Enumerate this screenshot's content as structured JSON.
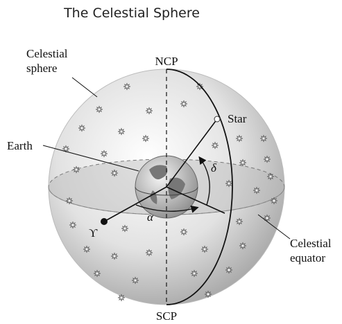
{
  "title": "The Celestial Sphere",
  "labels": {
    "celestial_sphere": [
      "Celestial",
      "sphere"
    ],
    "ncp": "NCP",
    "scp": "SCP",
    "star": "Star",
    "earth": "Earth",
    "delta": "δ",
    "alpha": "α",
    "vernal_equinox": "ϒ",
    "celestial_equator": [
      "Celestial",
      "equator"
    ]
  }
}
